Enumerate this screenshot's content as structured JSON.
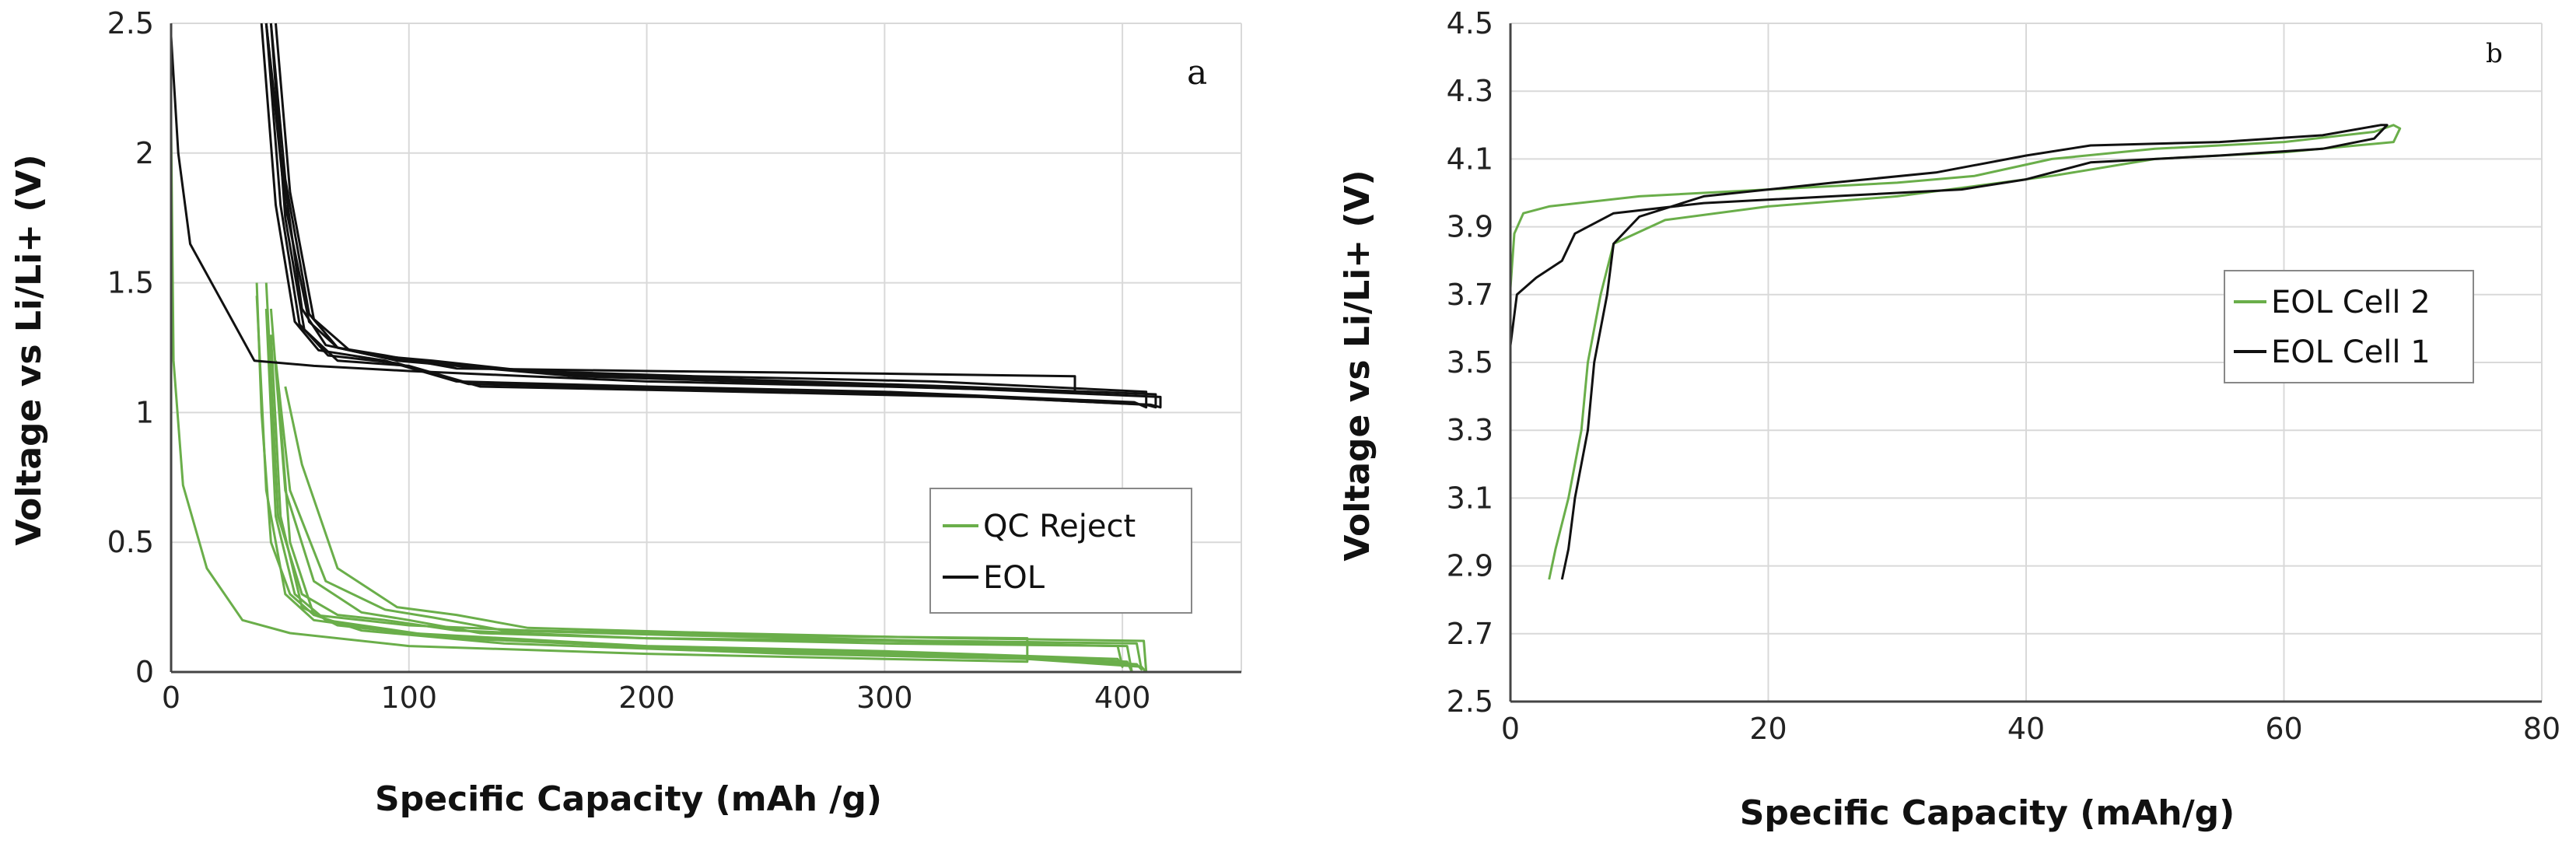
{
  "colors": {
    "green": "#6aae4a",
    "black": "#111111"
  },
  "chart_data": [
    {
      "type": "line",
      "panel": "a",
      "xlabel": "Specific Capacity (mAh /g)",
      "ylabel": "Voltage vs Li/Li+ (V)",
      "xlim": [
        0,
        450
      ],
      "ylim": [
        0,
        2.5
      ],
      "x_ticks": [
        0,
        100,
        200,
        300,
        400
      ],
      "y_ticks": [
        0,
        0.5,
        1,
        1.5,
        2,
        2.5
      ],
      "x_tick_labels": [
        "0",
        "100",
        "200",
        "300",
        "400"
      ],
      "y_tick_labels": [
        "0",
        "0.5",
        "1",
        "1.5",
        "2",
        "2.5"
      ],
      "legend": [
        "QC Reject",
        "EOL"
      ],
      "series": [
        {
          "name": "QC Reject",
          "color": "green",
          "cycles": [
            [
              [
                0,
                2.1
              ],
              [
                1,
                1.2
              ],
              [
                5,
                0.72
              ],
              [
                15,
                0.4
              ],
              [
                30,
                0.2
              ],
              [
                50,
                0.15
              ],
              [
                100,
                0.1
              ],
              [
                200,
                0.07
              ],
              [
                300,
                0.05
              ],
              [
                360,
                0.04
              ],
              [
                360,
                0.13
              ],
              [
                250,
                0.14
              ],
              [
                150,
                0.16
              ],
              [
                100,
                0.18
              ],
              [
                80,
                0.2
              ],
              [
                60,
                0.22
              ],
              [
                50,
                0.3
              ],
              [
                42,
                0.5
              ],
              [
                38,
                1.0
              ],
              [
                36,
                1.5
              ]
            ],
            [
              [
                36,
                1.45
              ],
              [
                40,
                0.7
              ],
              [
                48,
                0.3
              ],
              [
                60,
                0.2
              ],
              [
                100,
                0.15
              ],
              [
                200,
                0.1
              ],
              [
                300,
                0.08
              ],
              [
                398,
                0.05
              ],
              [
                400,
                0.02
              ],
              [
                398,
                0.1
              ],
              [
                300,
                0.12
              ],
              [
                200,
                0.13
              ],
              [
                120,
                0.16
              ],
              [
                90,
                0.2
              ],
              [
                70,
                0.22
              ],
              [
                55,
                0.3
              ],
              [
                45,
                0.6
              ],
              [
                40,
                1.5
              ]
            ],
            [
              [
                40,
                1.4
              ],
              [
                44,
                0.6
              ],
              [
                52,
                0.3
              ],
              [
                65,
                0.2
              ],
              [
                110,
                0.14
              ],
              [
                220,
                0.09
              ],
              [
                320,
                0.07
              ],
              [
                402,
                0.04
              ],
              [
                404,
                0.0
              ],
              [
                402,
                0.1
              ],
              [
                300,
                0.11
              ],
              [
                200,
                0.13
              ],
              [
                130,
                0.15
              ],
              [
                100,
                0.2
              ],
              [
                80,
                0.23
              ],
              [
                60,
                0.35
              ],
              [
                48,
                0.7
              ],
              [
                42,
                1.4
              ]
            ],
            [
              [
                42,
                1.3
              ],
              [
                46,
                0.6
              ],
              [
                55,
                0.25
              ],
              [
                70,
                0.18
              ],
              [
                120,
                0.13
              ],
              [
                240,
                0.08
              ],
              [
                340,
                0.06
              ],
              [
                406,
                0.03
              ],
              [
                408,
                0.01
              ],
              [
                406,
                0.11
              ],
              [
                320,
                0.12
              ],
              [
                220,
                0.14
              ],
              [
                140,
                0.16
              ],
              [
                110,
                0.21
              ],
              [
                90,
                0.24
              ],
              [
                65,
                0.35
              ],
              [
                50,
                0.7
              ],
              [
                44,
                1.2
              ]
            ],
            [
              [
                44,
                1.2
              ],
              [
                50,
                0.5
              ],
              [
                60,
                0.22
              ],
              [
                80,
                0.16
              ],
              [
                140,
                0.11
              ],
              [
                260,
                0.07
              ],
              [
                360,
                0.05
              ],
              [
                408,
                0.02
              ],
              [
                410,
                0.0
              ],
              [
                409,
                0.12
              ],
              [
                330,
                0.13
              ],
              [
                230,
                0.15
              ],
              [
                150,
                0.17
              ],
              [
                120,
                0.22
              ],
              [
                95,
                0.25
              ],
              [
                70,
                0.4
              ],
              [
                55,
                0.8
              ],
              [
                48,
                1.1
              ]
            ]
          ]
        },
        {
          "name": "EOL",
          "color": "black",
          "cycles": [
            [
              [
                0,
                2.45
              ],
              [
                3,
                2.0
              ],
              [
                8,
                1.65
              ],
              [
                20,
                1.45
              ],
              [
                35,
                1.2
              ],
              [
                60,
                1.18
              ],
              [
                100,
                1.16
              ],
              [
                150,
                1.14
              ],
              [
                200,
                1.12
              ],
              [
                300,
                1.1
              ],
              [
                380,
                1.08
              ],
              [
                380,
                1.14
              ],
              [
                300,
                1.15
              ],
              [
                200,
                1.16
              ],
              [
                120,
                1.17
              ],
              [
                90,
                1.22
              ],
              [
                70,
                1.25
              ],
              [
                58,
                1.35
              ],
              [
                48,
                1.8
              ],
              [
                40,
                2.5
              ]
            ],
            [
              [
                38,
                2.5
              ],
              [
                44,
                1.8
              ],
              [
                52,
                1.35
              ],
              [
                62,
                1.24
              ],
              [
                90,
                1.2
              ],
              [
                120,
                1.12
              ],
              [
                200,
                1.1
              ],
              [
                300,
                1.08
              ],
              [
                405,
                1.04
              ],
              [
                410,
                1.02
              ],
              [
                410,
                1.08
              ],
              [
                320,
                1.12
              ],
              [
                220,
                1.14
              ],
              [
                150,
                1.16
              ],
              [
                110,
                1.2
              ],
              [
                85,
                1.22
              ],
              [
                65,
                1.26
              ],
              [
                55,
                1.4
              ],
              [
                46,
                2.0
              ],
              [
                40,
                2.5
              ]
            ],
            [
              [
                40,
                2.5
              ],
              [
                46,
                1.8
              ],
              [
                54,
                1.34
              ],
              [
                66,
                1.22
              ],
              [
                95,
                1.19
              ],
              [
                125,
                1.11
              ],
              [
                220,
                1.09
              ],
              [
                320,
                1.07
              ],
              [
                410,
                1.03
              ],
              [
                414,
                1.02
              ],
              [
                414,
                1.07
              ],
              [
                330,
                1.1
              ],
              [
                230,
                1.13
              ],
              [
                160,
                1.15
              ],
              [
                115,
                1.19
              ],
              [
                90,
                1.21
              ],
              [
                70,
                1.25
              ],
              [
                58,
                1.38
              ],
              [
                48,
                1.9
              ],
              [
                42,
                2.5
              ]
            ],
            [
              [
                42,
                2.5
              ],
              [
                48,
                1.75
              ],
              [
                56,
                1.32
              ],
              [
                70,
                1.2
              ],
              [
                100,
                1.18
              ],
              [
                130,
                1.1
              ],
              [
                240,
                1.08
              ],
              [
                340,
                1.06
              ],
              [
                412,
                1.03
              ],
              [
                416,
                1.02
              ],
              [
                416,
                1.06
              ],
              [
                340,
                1.09
              ],
              [
                240,
                1.12
              ],
              [
                170,
                1.14
              ],
              [
                120,
                1.18
              ],
              [
                95,
                1.2
              ],
              [
                75,
                1.24
              ],
              [
                60,
                1.36
              ],
              [
                50,
                1.85
              ],
              [
                44,
                2.5
              ]
            ]
          ]
        }
      ]
    },
    {
      "type": "line",
      "panel": "b",
      "xlabel": "Specific Capacity (mAh/g)",
      "ylabel": "Voltage vs Li/Li+ (V)",
      "xlim": [
        0,
        80
      ],
      "ylim": [
        2.5,
        4.5
      ],
      "x_ticks": [
        0,
        20,
        40,
        60,
        80
      ],
      "y_ticks": [
        2.5,
        2.7,
        2.9,
        3.1,
        3.3,
        3.5,
        3.7,
        3.9,
        4.1,
        4.3,
        4.5
      ],
      "x_tick_labels": [
        "0",
        "20",
        "40",
        "60",
        "80"
      ],
      "y_tick_labels": [
        "2.5",
        "2.7",
        "2.9",
        "3.1",
        "3.3",
        "3.5",
        "3.7",
        "3.9",
        "4.1",
        "4.3",
        "4.5"
      ],
      "legend": [
        "EOL Cell 2",
        "EOL Cell 1"
      ],
      "series": [
        {
          "name": "EOL Cell 2",
          "color": "green",
          "cycles": [
            [
              [
                0,
                3.72
              ],
              [
                0.3,
                3.88
              ],
              [
                1,
                3.94
              ],
              [
                3,
                3.96
              ],
              [
                10,
                3.99
              ],
              [
                20,
                4.01
              ],
              [
                30,
                4.03
              ],
              [
                36,
                4.05
              ],
              [
                42,
                4.1
              ],
              [
                50,
                4.13
              ],
              [
                60,
                4.15
              ],
              [
                67,
                4.18
              ],
              [
                68.5,
                4.2
              ],
              [
                69,
                4.19
              ],
              [
                68.5,
                4.15
              ],
              [
                60,
                4.12
              ],
              [
                50,
                4.1
              ],
              [
                42,
                4.05
              ],
              [
                36,
                4.02
              ],
              [
                30,
                3.99
              ],
              [
                20,
                3.96
              ],
              [
                12,
                3.92
              ],
              [
                8,
                3.85
              ],
              [
                7,
                3.7
              ],
              [
                6,
                3.5
              ],
              [
                5.5,
                3.3
              ],
              [
                4.5,
                3.1
              ],
              [
                3.5,
                2.95
              ],
              [
                3,
                2.86
              ]
            ]
          ]
        },
        {
          "name": "EOL Cell 1",
          "color": "black",
          "cycles": [
            [
              [
                0,
                3.55
              ],
              [
                0.5,
                3.7
              ],
              [
                2,
                3.75
              ],
              [
                4,
                3.8
              ],
              [
                5,
                3.88
              ],
              [
                8,
                3.94
              ],
              [
                15,
                3.97
              ],
              [
                25,
                3.99
              ],
              [
                35,
                4.01
              ],
              [
                40,
                4.04
              ],
              [
                45,
                4.09
              ],
              [
                55,
                4.11
              ],
              [
                63,
                4.13
              ],
              [
                67,
                4.16
              ],
              [
                68,
                4.2
              ],
              [
                67.5,
                4.2
              ],
              [
                63,
                4.17
              ],
              [
                55,
                4.15
              ],
              [
                45,
                4.14
              ],
              [
                40,
                4.11
              ],
              [
                33,
                4.06
              ],
              [
                25,
                4.03
              ],
              [
                15,
                3.99
              ],
              [
                10,
                3.93
              ],
              [
                8,
                3.85
              ],
              [
                7.5,
                3.7
              ],
              [
                6.5,
                3.5
              ],
              [
                6,
                3.3
              ],
              [
                5,
                3.1
              ],
              [
                4.5,
                2.95
              ],
              [
                4,
                2.86
              ]
            ]
          ]
        }
      ]
    }
  ]
}
